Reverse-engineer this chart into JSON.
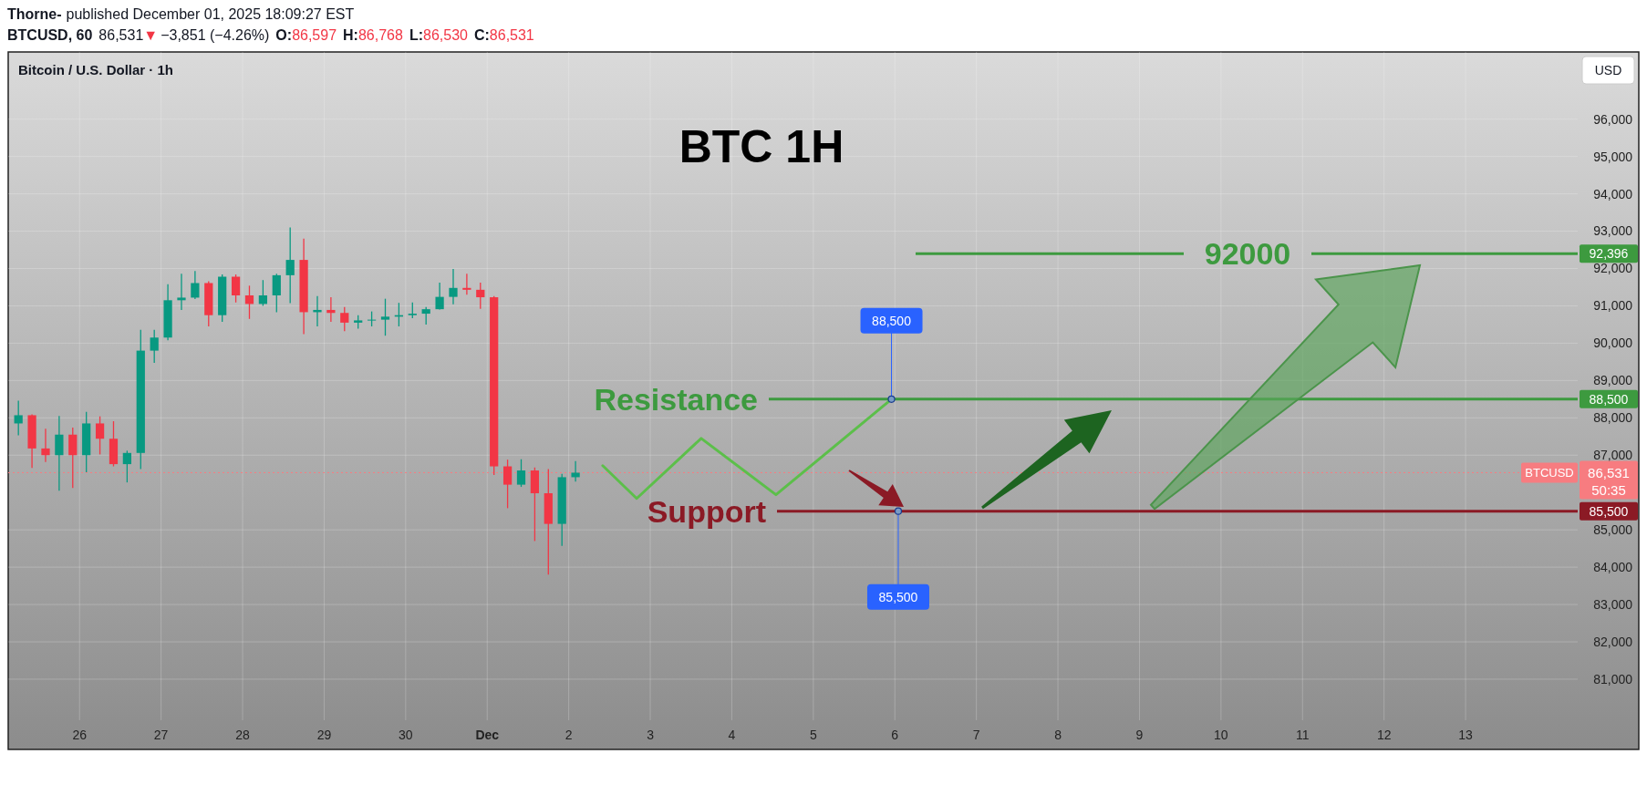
{
  "chart_data": {
    "type": "candlestick",
    "title": "BTC 1H",
    "subtitle": "Bitcoin / U.S. Dollar · 1h",
    "x": [
      "2025-11-25T06:00",
      "2025-11-25T10:00",
      "2025-11-25T14:00",
      "2025-11-25T18:00",
      "2025-11-25T22:00",
      "2025-11-26T02:00",
      "2025-11-26T06:00",
      "2025-11-26T10:00",
      "2025-11-26T14:00",
      "2025-11-26T18:00",
      "2025-11-26T22:00",
      "2025-11-27T02:00",
      "2025-11-27T06:00",
      "2025-11-27T10:00",
      "2025-11-27T14:00",
      "2025-11-27T18:00",
      "2025-11-27T22:00",
      "2025-11-28T02:00",
      "2025-11-28T06:00",
      "2025-11-28T10:00",
      "2025-11-28T14:00",
      "2025-11-28T18:00",
      "2025-11-28T22:00",
      "2025-11-29T02:00",
      "2025-11-29T06:00",
      "2025-11-29T10:00",
      "2025-11-29T14:00",
      "2025-11-29T18:00",
      "2025-11-29T22:00",
      "2025-11-30T02:00",
      "2025-11-30T06:00",
      "2025-11-30T10:00",
      "2025-11-30T14:00",
      "2025-11-30T18:00",
      "2025-11-30T22:00",
      "2025-12-01T02:00",
      "2025-12-01T06:00",
      "2025-12-01T10:00",
      "2025-12-01T14:00",
      "2025-12-01T18:00",
      "2025-12-01T22:00",
      "2025-12-02T02:00"
    ],
    "ohlc": [
      [
        87850,
        88460,
        87530,
        88070
      ],
      [
        88070,
        88090,
        86660,
        87180
      ],
      [
        87180,
        87710,
        86820,
        87000
      ],
      [
        87000,
        88050,
        86050,
        87550
      ],
      [
        87550,
        87740,
        86120,
        87000
      ],
      [
        87000,
        88160,
        86540,
        87850
      ],
      [
        87850,
        88040,
        87020,
        87440
      ],
      [
        87440,
        87910,
        86700,
        86760
      ],
      [
        86760,
        87120,
        86270,
        87060
      ],
      [
        87060,
        90360,
        86630,
        89800
      ],
      [
        89800,
        90360,
        89470,
        90150
      ],
      [
        90150,
        91580,
        90080,
        91150
      ],
      [
        91150,
        91860,
        90890,
        91220
      ],
      [
        91220,
        91930,
        91180,
        91610
      ],
      [
        91610,
        91660,
        90450,
        90750
      ],
      [
        90750,
        91840,
        90570,
        91780
      ],
      [
        91780,
        91840,
        91090,
        91280
      ],
      [
        91280,
        91540,
        90650,
        91050
      ],
      [
        91050,
        91690,
        91000,
        91280
      ],
      [
        91280,
        91860,
        90830,
        91820
      ],
      [
        91820,
        93100,
        91070,
        92230
      ],
      [
        92230,
        92800,
        90240,
        90830
      ],
      [
        90830,
        91260,
        90450,
        90890
      ],
      [
        90890,
        91230,
        90570,
        90810
      ],
      [
        90810,
        90970,
        90320,
        90550
      ],
      [
        90550,
        90750,
        90390,
        90610
      ],
      [
        90610,
        90850,
        90450,
        90630
      ],
      [
        90630,
        91190,
        90200,
        90710
      ],
      [
        90710,
        91080,
        90450,
        90750
      ],
      [
        90750,
        91090,
        90670,
        90790
      ],
      [
        90790,
        90970,
        90500,
        90910
      ],
      [
        90910,
        91620,
        90900,
        91240
      ],
      [
        91240,
        91990,
        91040,
        91480
      ],
      [
        91480,
        91860,
        91300,
        91430
      ],
      [
        91430,
        91620,
        90920,
        91230
      ],
      [
        91230,
        91260,
        86470,
        86700
      ],
      [
        86700,
        86880,
        85580,
        86210
      ],
      [
        86210,
        86890,
        86150,
        86590
      ],
      [
        86590,
        86670,
        84700,
        85980
      ],
      [
        85980,
        86630,
        83800,
        85160
      ],
      [
        85160,
        86500,
        84570,
        86410
      ],
      [
        86410,
        86840,
        86290,
        86531
      ]
    ],
    "colors": [
      "#089981",
      "#f23645",
      "#f23645",
      "#089981",
      "#f23645",
      "#089981",
      "#f23645",
      "#f23645",
      "#089981",
      "#089981",
      "#089981",
      "#089981",
      "#089981",
      "#089981",
      "#f23645",
      "#089981",
      "#f23645",
      "#f23645",
      "#089981",
      "#089981",
      "#089981",
      "#f23645",
      "#089981",
      "#f23645",
      "#f23645",
      "#089981",
      "#089981",
      "#089981",
      "#089981",
      "#089981",
      "#089981",
      "#089981",
      "#089981",
      "#f23645",
      "#f23645",
      "#f23645",
      "#f23645",
      "#089981",
      "#f23645",
      "#f23645",
      "#089981",
      "#089981"
    ],
    "series": [
      {
        "type": "line",
        "color": "#5cbf4a",
        "x": [
          "2025-12-02T10:00",
          "2025-12-02T20:00",
          "2025-12-03T15:00",
          "2025-12-04T13:00",
          "2025-12-05T23:00"
        ],
        "values": [
          86720,
          85840,
          87450,
          85940,
          88500
        ]
      }
    ],
    "xlim": [
      "2025-11-25T03:00",
      "2025-12-14T09:00"
    ],
    "xticks": [
      {
        "value": "2025-11-26",
        "label": "26"
      },
      {
        "value": "2025-11-27",
        "label": "27"
      },
      {
        "value": "2025-11-28",
        "label": "28"
      },
      {
        "value": "2025-11-29",
        "label": "29"
      },
      {
        "value": "2025-11-30",
        "label": "30"
      },
      {
        "value": "2025-12-01",
        "label": "Dec"
      },
      {
        "value": "2025-12-02",
        "label": "2"
      },
      {
        "value": "2025-12-03",
        "label": "3"
      },
      {
        "value": "2025-12-04",
        "label": "4"
      },
      {
        "value": "2025-12-05",
        "label": "5"
      },
      {
        "value": "2025-12-06",
        "label": "6"
      },
      {
        "value": "2025-12-07",
        "label": "7"
      },
      {
        "value": "2025-12-08",
        "label": "8"
      },
      {
        "value": "2025-12-09",
        "label": "9"
      },
      {
        "value": "2025-12-10",
        "label": "10"
      },
      {
        "value": "2025-12-11",
        "label": "11"
      },
      {
        "value": "2025-12-12",
        "label": "12"
      },
      {
        "value": "2025-12-13",
        "label": "13"
      }
    ],
    "ylim": [
      79900,
      97800
    ],
    "yticks": [
      {
        "value": 81000,
        "label": "81,000"
      },
      {
        "value": 82000,
        "label": "82,000"
      },
      {
        "value": 83000,
        "label": "83,000"
      },
      {
        "value": 84000,
        "label": "84,000"
      },
      {
        "value": 85000,
        "label": "85,000"
      },
      {
        "value": 87000,
        "label": "87,000"
      },
      {
        "value": 88000,
        "label": "88,000"
      },
      {
        "value": 89000,
        "label": "89,000"
      },
      {
        "value": 90000,
        "label": "90,000"
      },
      {
        "value": 91000,
        "label": "91,000"
      },
      {
        "value": 92000,
        "label": "92,000"
      },
      {
        "value": 93000,
        "label": "93,000"
      },
      {
        "value": 94000,
        "label": "94,000"
      },
      {
        "value": 95000,
        "label": "95,000"
      },
      {
        "value": 96000,
        "label": "96,000"
      }
    ],
    "grid": true,
    "ref_lines": [
      {
        "axis": "y",
        "value": 92396,
        "label": "92,396",
        "color": "#3d9a3f"
      },
      {
        "axis": "y",
        "value": 88500,
        "label": "Resistance",
        "color": "#3d9a3f"
      },
      {
        "axis": "y",
        "value": 85500,
        "label": "Support",
        "color": "#8b1a25"
      },
      {
        "axis": "y",
        "value": 86531,
        "label": "BTCUSD",
        "color": "#f77c80",
        "line_style": "dotted"
      }
    ],
    "annotations": [
      "Thorne-",
      "published December 01, 2025 18:09:27 EST",
      "BTCUSD, 60",
      "86,531",
      "▼",
      "−3,851 (−4.26%)",
      "O:86,597",
      "H:86,768",
      "L:86,530",
      "C:86,531",
      "USD",
      "50:35",
      "92000",
      {
        "text": "88,500",
        "x": "2025-12-05T23:00",
        "y": 88500
      },
      {
        "text": "85,500",
        "x": "2025-12-06T01:00",
        "y": 85500
      }
    ]
  }
}
